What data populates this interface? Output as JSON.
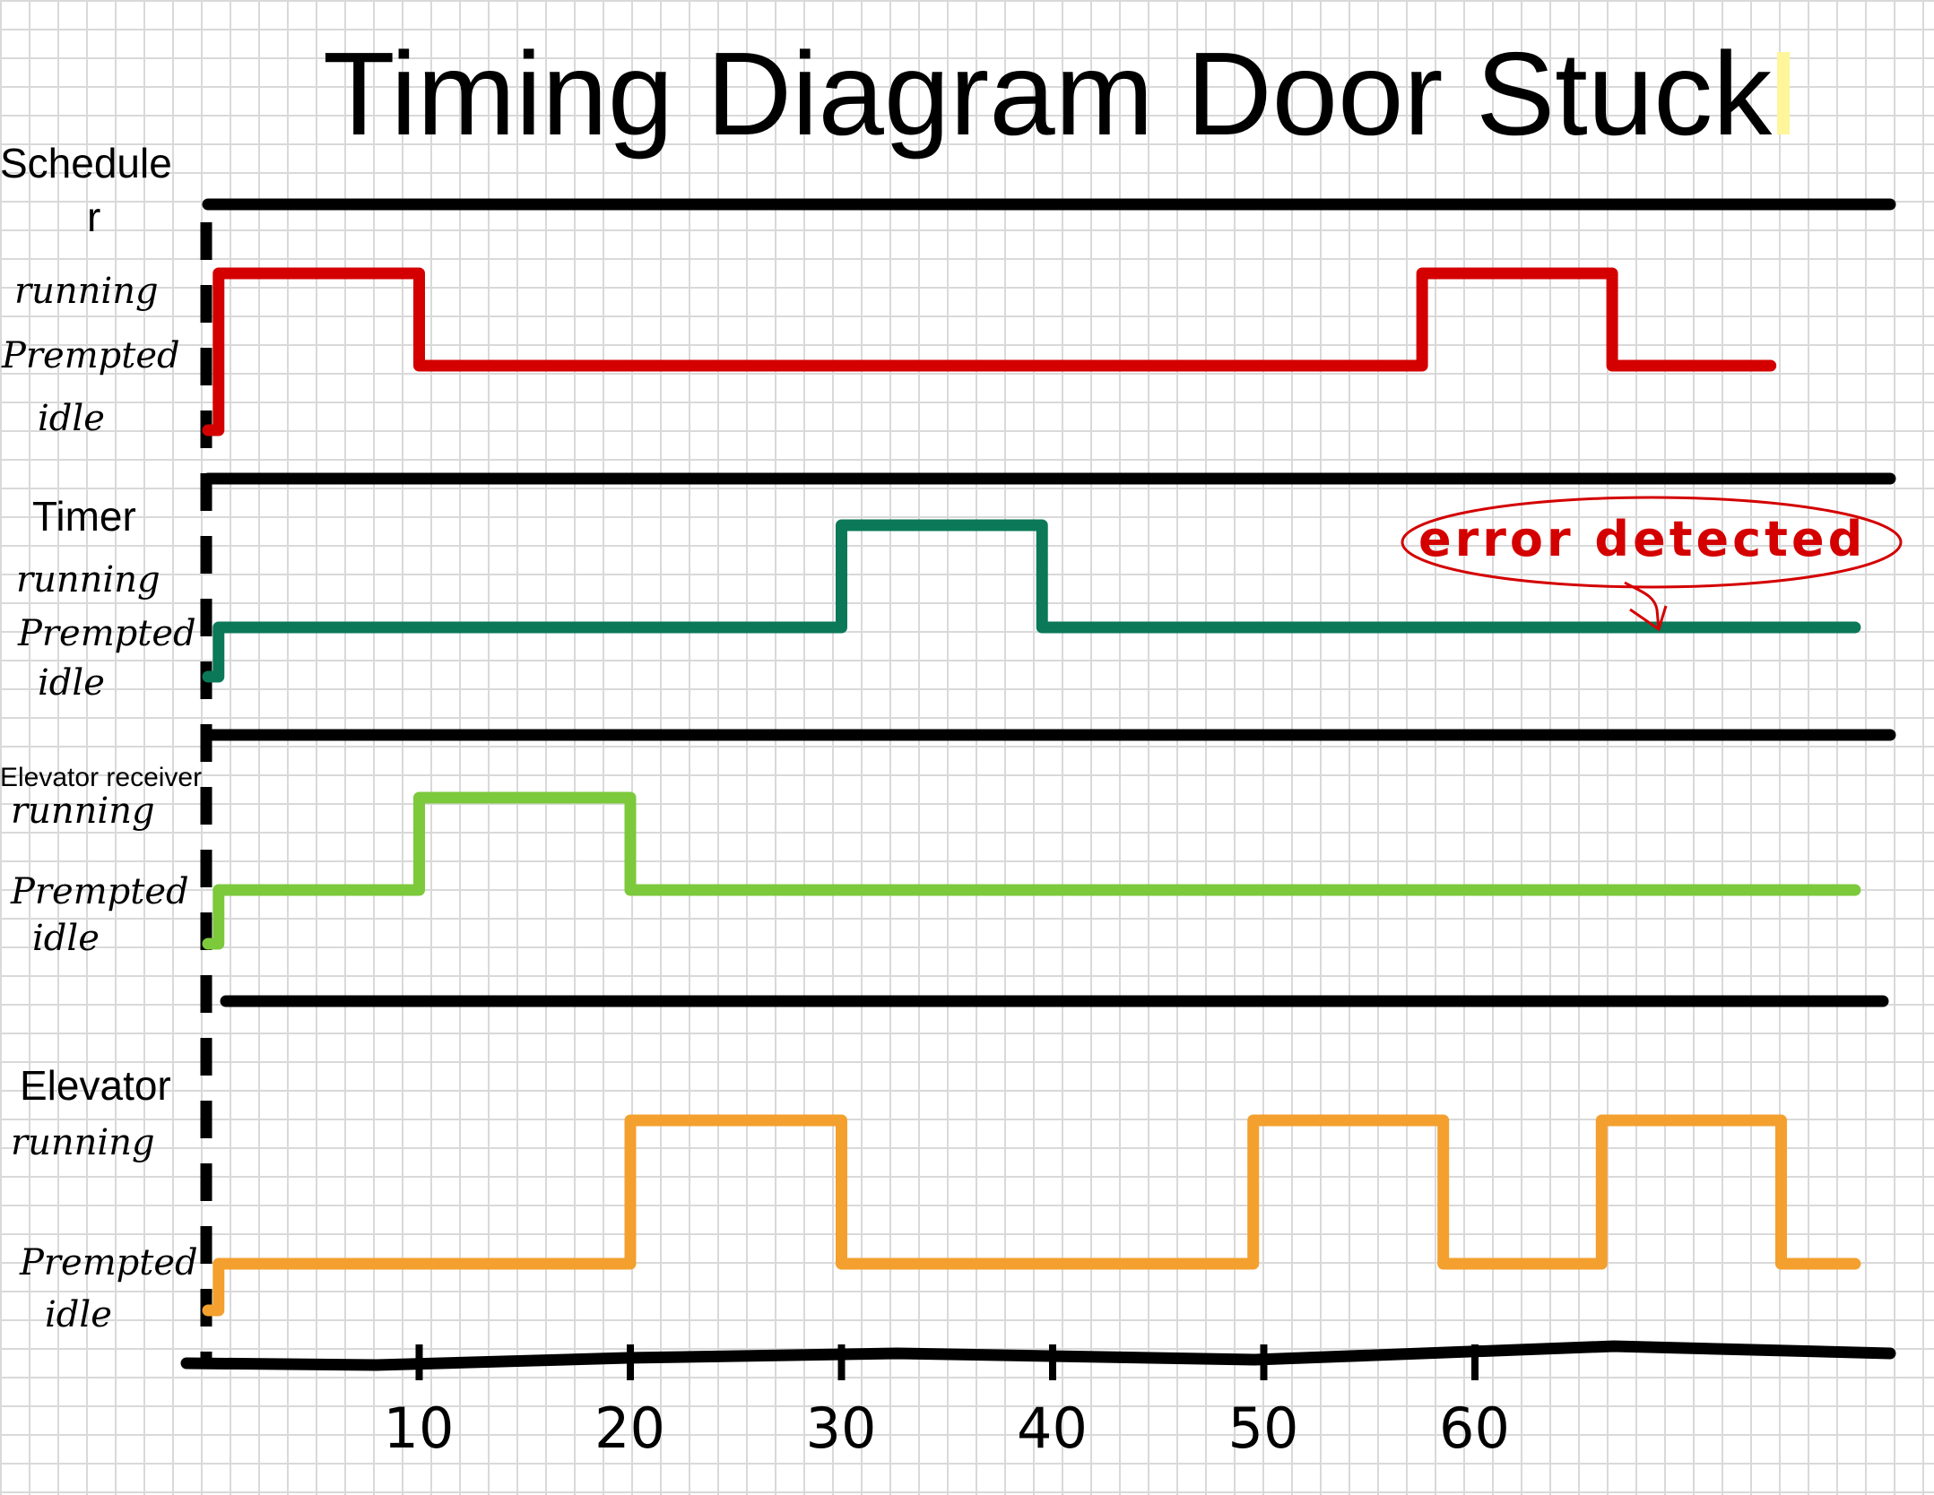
{
  "title": "Timing Diagram Door Stuck",
  "lanes": [
    {
      "name": "Schedule",
      "name_cont": "r",
      "states": [
        "running",
        "Prempted",
        "idle"
      ],
      "color": "#d40000",
      "signal": [
        [
          0,
          "idle"
        ],
        [
          0.5,
          "running"
        ],
        [
          10,
          "prempted"
        ],
        [
          57.5,
          "running"
        ],
        [
          66.5,
          "prempted"
        ],
        [
          74,
          "prempted"
        ]
      ]
    },
    {
      "name": "Timer",
      "states": [
        "running",
        "Prempted",
        "idle"
      ],
      "color": "#0b7858",
      "signal": [
        [
          0,
          "idle"
        ],
        [
          0.5,
          "prempted"
        ],
        [
          30,
          "running"
        ],
        [
          39.5,
          "prempted"
        ],
        [
          78,
          "prempted"
        ]
      ]
    },
    {
      "name": "Elevator receiver",
      "states": [
        "running",
        "Prempted",
        "idle"
      ],
      "color": "#7cc93c",
      "signal": [
        [
          0,
          "idle"
        ],
        [
          0.5,
          "prempted"
        ],
        [
          10,
          "running"
        ],
        [
          20,
          "prempted"
        ],
        [
          78,
          "prempted"
        ]
      ]
    },
    {
      "name": "Elevator",
      "states": [
        "running",
        "Prempted",
        "idle"
      ],
      "color": "#f3a02e",
      "signal": [
        [
          0,
          "idle"
        ],
        [
          0.5,
          "prempted"
        ],
        [
          20,
          "running"
        ],
        [
          30,
          "prempted"
        ],
        [
          49.5,
          "running"
        ],
        [
          58.5,
          "prempted"
        ],
        [
          66,
          "running"
        ],
        [
          74.5,
          "prempted"
        ],
        [
          78,
          "prempted"
        ]
      ]
    }
  ],
  "annotation": {
    "text": "error detected",
    "color": "#d40000"
  },
  "x_axis": {
    "ticks": [
      10,
      20,
      30,
      40,
      50,
      60
    ],
    "range": [
      0,
      78
    ]
  },
  "highlight_color": "#fff59a"
}
